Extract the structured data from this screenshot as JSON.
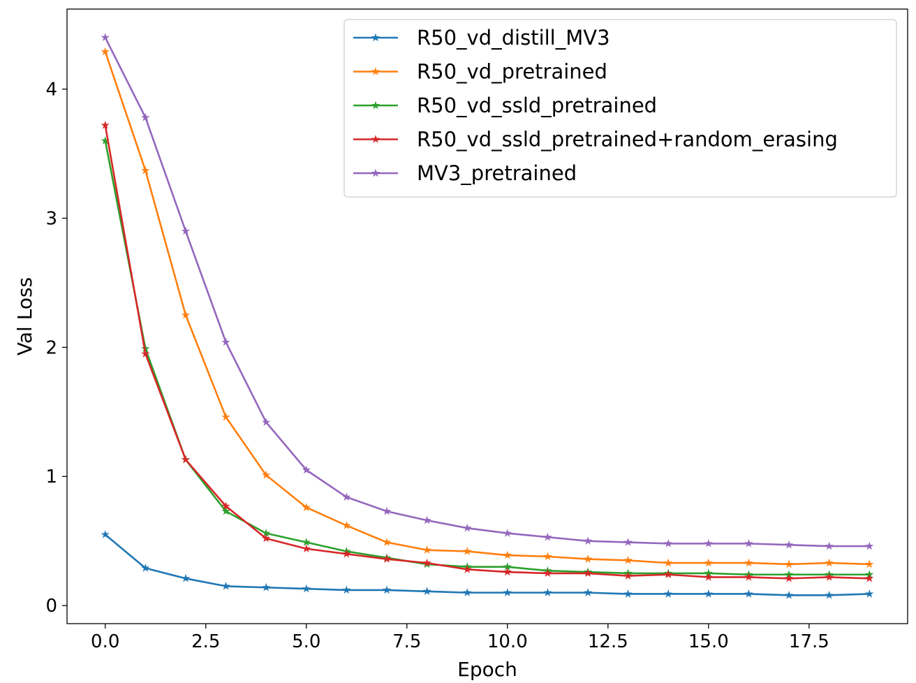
{
  "chart_data": {
    "type": "line",
    "title": "",
    "xlabel": "Epoch",
    "ylabel": "Val Loss",
    "xlim": [
      -0.95,
      19.95
    ],
    "ylim": [
      -0.14,
      4.62
    ],
    "xticks": [
      0.0,
      2.5,
      5.0,
      7.5,
      10.0,
      12.5,
      15.0,
      17.5
    ],
    "xtick_labels": [
      "0.0",
      "2.5",
      "5.0",
      "7.5",
      "10.0",
      "12.5",
      "15.0",
      "17.5"
    ],
    "yticks": [
      0,
      1,
      2,
      3,
      4
    ],
    "ytick_labels": [
      "0",
      "1",
      "2",
      "3",
      "4"
    ],
    "grid": false,
    "legend_position": "top-right",
    "marker": "star",
    "x": [
      0,
      1,
      2,
      3,
      4,
      5,
      6,
      7,
      8,
      9,
      10,
      11,
      12,
      13,
      14,
      15,
      16,
      17,
      18,
      19
    ],
    "series": [
      {
        "name": "R50_vd_distill_MV3",
        "color": "#1f77b4",
        "values": [
          0.55,
          0.29,
          0.21,
          0.15,
          0.14,
          0.13,
          0.12,
          0.12,
          0.11,
          0.1,
          0.1,
          0.1,
          0.1,
          0.09,
          0.09,
          0.09,
          0.09,
          0.08,
          0.08,
          0.09
        ]
      },
      {
        "name": "R50_vd_pretrained",
        "color": "#ff7f0e",
        "values": [
          4.29,
          3.37,
          2.25,
          1.46,
          1.01,
          0.76,
          0.62,
          0.49,
          0.43,
          0.42,
          0.39,
          0.38,
          0.36,
          0.35,
          0.33,
          0.33,
          0.33,
          0.32,
          0.33,
          0.32
        ]
      },
      {
        "name": "R50_vd_ssld_pretrained",
        "color": "#2ca02c",
        "values": [
          3.6,
          1.99,
          1.13,
          0.73,
          0.56,
          0.49,
          0.42,
          0.37,
          0.32,
          0.3,
          0.3,
          0.27,
          0.26,
          0.25,
          0.25,
          0.25,
          0.24,
          0.24,
          0.24,
          0.24
        ]
      },
      {
        "name": "R50_vd_ssld_pretrained+random_erasing",
        "color": "#d62728",
        "values": [
          3.72,
          1.95,
          1.13,
          0.77,
          0.52,
          0.44,
          0.4,
          0.36,
          0.33,
          0.28,
          0.26,
          0.25,
          0.25,
          0.23,
          0.24,
          0.22,
          0.22,
          0.21,
          0.22,
          0.21
        ]
      },
      {
        "name": "MV3_pretrained",
        "color": "#9467bd",
        "values": [
          4.4,
          3.78,
          2.9,
          2.04,
          1.42,
          1.05,
          0.84,
          0.73,
          0.66,
          0.6,
          0.56,
          0.53,
          0.5,
          0.49,
          0.48,
          0.48,
          0.48,
          0.47,
          0.46,
          0.46
        ]
      }
    ]
  }
}
